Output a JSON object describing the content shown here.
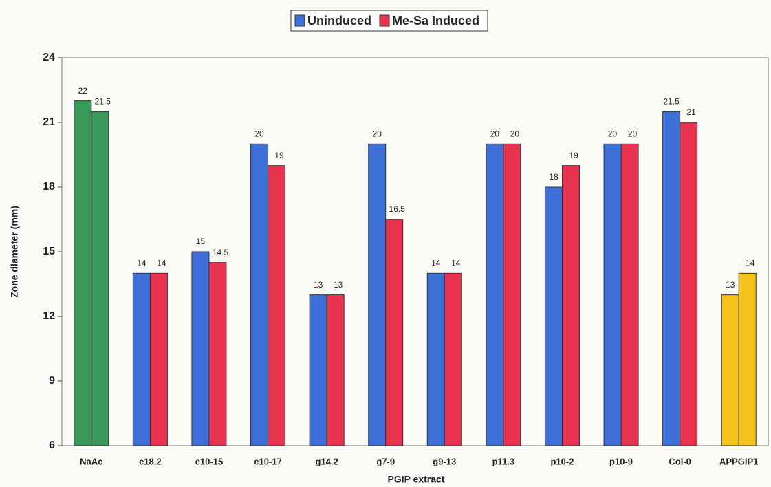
{
  "chart_data": {
    "type": "bar",
    "x_label": "PGIP extract",
    "y_label": "Zone diameter (mm)",
    "categories": [
      "NaAc",
      "e18.2",
      "e10-15",
      "e10-17",
      "g14.2",
      "g7-9",
      "g9-13",
      "p11.3",
      "p10-2",
      "p10-9",
      "Col-0",
      "APPGIP1"
    ],
    "series": [
      {
        "name": "Uninduced",
        "color": "#3f6fd8",
        "bar_colors": [
          "#3a9a5c",
          "#3f6fd8",
          "#3f6fd8",
          "#3f6fd8",
          "#3f6fd8",
          "#3f6fd8",
          "#3f6fd8",
          "#3f6fd8",
          "#3f6fd8",
          "#3f6fd8",
          "#3f6fd8",
          "#f5c21b"
        ],
        "values": [
          22,
          14,
          15,
          20,
          13,
          20,
          14,
          20,
          18,
          20,
          21.5,
          13
        ]
      },
      {
        "name": "Me-Sa Induced",
        "color": "#e8334f",
        "bar_colors": [
          "#3a9a5c",
          "#e8334f",
          "#e8334f",
          "#e8334f",
          "#e8334f",
          "#e8334f",
          "#e8334f",
          "#e8334f",
          "#e8334f",
          "#e8334f",
          "#e8334f",
          "#f5c21b"
        ],
        "values": [
          21.5,
          14,
          14.5,
          19,
          13,
          16.5,
          14,
          20,
          19,
          20,
          21,
          14
        ]
      }
    ],
    "ylim": [
      6,
      24
    ],
    "yticks": [
      6,
      9,
      12,
      15,
      18,
      21,
      24
    ],
    "legend": "top"
  }
}
